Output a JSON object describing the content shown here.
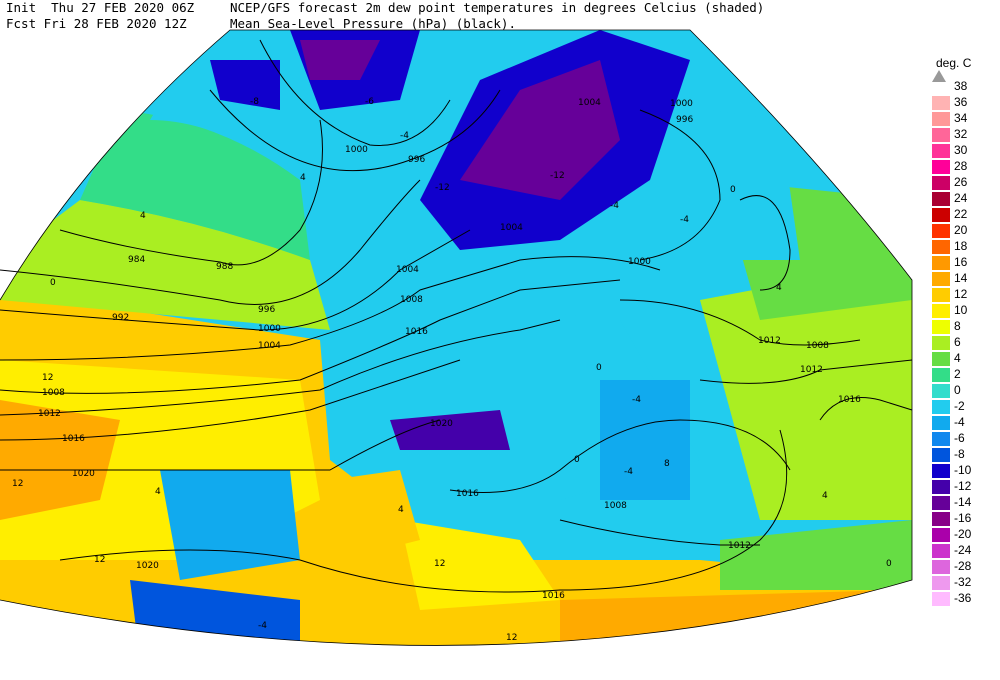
{
  "header": {
    "init_line": "Init  Thu 27 FEB 2020 06Z",
    "fcst_line": "Fcst Fri 28 FEB 2020 12Z",
    "title_line1": "NCEP/GFS forecast 2m dew point temperatures in degrees Celcius (shaded)",
    "title_line2": "Mean Sea-Level Pressure (hPa) (black)."
  },
  "legend": {
    "unit": "deg. C",
    "levels": [
      {
        "label": "38",
        "color": "#d9d9d9"
      },
      {
        "label": "36",
        "color": "#ffb3b3"
      },
      {
        "label": "34",
        "color": "#ff9999"
      },
      {
        "label": "32",
        "color": "#ff6699"
      },
      {
        "label": "30",
        "color": "#ff3399"
      },
      {
        "label": "28",
        "color": "#ff0099"
      },
      {
        "label": "26",
        "color": "#cc0066"
      },
      {
        "label": "24",
        "color": "#aa0033"
      },
      {
        "label": "22",
        "color": "#cc0000"
      },
      {
        "label": "20",
        "color": "#ff3300"
      },
      {
        "label": "18",
        "color": "#ff6600"
      },
      {
        "label": "16",
        "color": "#ff9900"
      },
      {
        "label": "14",
        "color": "#ffaa00"
      },
      {
        "label": "12",
        "color": "#ffcc00"
      },
      {
        "label": "10",
        "color": "#ffee00"
      },
      {
        "label": "8",
        "color": "#eeff00"
      },
      {
        "label": "6",
        "color": "#aaee22"
      },
      {
        "label": "4",
        "color": "#66dd44"
      },
      {
        "label": "2",
        "color": "#33dd88"
      },
      {
        "label": "0",
        "color": "#33ddcc"
      },
      {
        "label": "-2",
        "color": "#22ccee"
      },
      {
        "label": "-4",
        "color": "#11aaee"
      },
      {
        "label": "-6",
        "color": "#1188ee"
      },
      {
        "label": "-8",
        "color": "#0055dd"
      },
      {
        "label": "-10",
        "color": "#1100cc"
      },
      {
        "label": "-12",
        "color": "#4400aa"
      },
      {
        "label": "-14",
        "color": "#660099"
      },
      {
        "label": "-16",
        "color": "#880088"
      },
      {
        "label": "-20",
        "color": "#aa00aa"
      },
      {
        "label": "-24",
        "color": "#cc33cc"
      },
      {
        "label": "-28",
        "color": "#dd66dd"
      },
      {
        "label": "-32",
        "color": "#ee99ee"
      },
      {
        "label": "-36",
        "color": "#ffbbff"
      }
    ]
  },
  "map": {
    "isobar_labels": [
      "1000",
      "996",
      "1004",
      "984",
      "988",
      "992",
      "996",
      "1000",
      "1004",
      "1008",
      "1012",
      "1016",
      "1020",
      "1016",
      "1012",
      "1008",
      "1004",
      "1000",
      "996",
      "1000",
      "1004",
      "1008",
      "1012",
      "1016",
      "1020",
      "1020",
      "1016",
      "1016",
      "1012",
      "1008"
    ],
    "dewpoint_labels": [
      "-8",
      "-6",
      "-4",
      "-12",
      "-12",
      "-4",
      "-4",
      "0",
      "4",
      "4",
      "4",
      "0",
      "12",
      "12",
      "12",
      "0",
      "-4",
      "-4",
      "0",
      "4",
      "8",
      "4",
      "0",
      "12",
      "12",
      "4",
      "-4"
    ]
  }
}
